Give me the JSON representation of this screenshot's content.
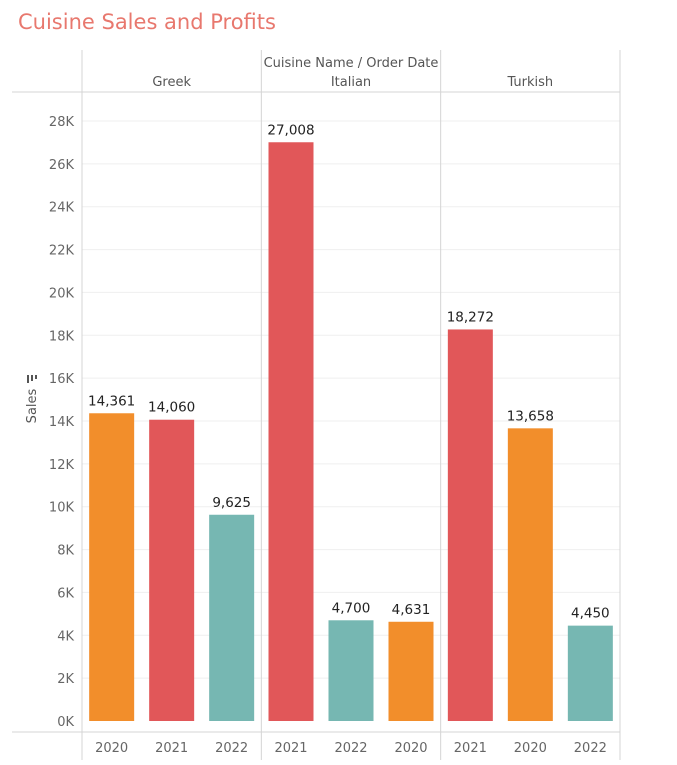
{
  "chart_data": {
    "type": "bar",
    "title": "Cuisine Sales and Profits",
    "header_label": "Cuisine Name / Order Date",
    "ylabel": "Sales",
    "ylim": [
      0,
      28000
    ],
    "yticks": [
      "0K",
      "2K",
      "4K",
      "6K",
      "8K",
      "10K",
      "12K",
      "14K",
      "16K",
      "18K",
      "20K",
      "22K",
      "24K",
      "26K",
      "28K"
    ],
    "colors": {
      "2020": "#f28e2b",
      "2021": "#e15759",
      "2022": "#76b7b2"
    },
    "groups": [
      {
        "name": "Greek",
        "bars": [
          {
            "year": "2020",
            "value": 14361,
            "label": "14,361"
          },
          {
            "year": "2021",
            "value": 14060,
            "label": "14,060"
          },
          {
            "year": "2022",
            "value": 9625,
            "label": "9,625"
          }
        ]
      },
      {
        "name": "Italian",
        "bars": [
          {
            "year": "2021",
            "value": 27008,
            "label": "27,008"
          },
          {
            "year": "2022",
            "value": 4700,
            "label": "4,700"
          },
          {
            "year": "2020",
            "value": 4631,
            "label": "4,631"
          }
        ]
      },
      {
        "name": "Turkish",
        "bars": [
          {
            "year": "2021",
            "value": 18272,
            "label": "18,272"
          },
          {
            "year": "2020",
            "value": 13658,
            "label": "13,658"
          },
          {
            "year": "2022",
            "value": 4450,
            "label": "4,450"
          }
        ]
      }
    ]
  }
}
